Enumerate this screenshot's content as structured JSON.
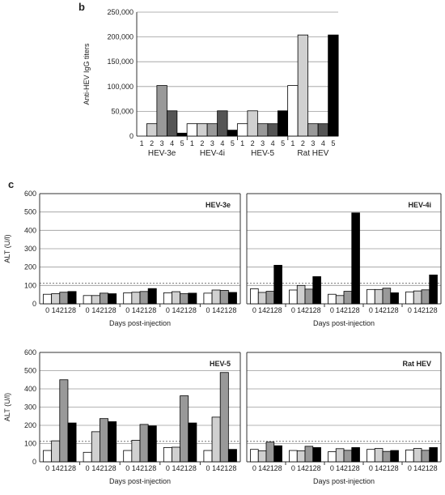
{
  "panel_b_label": "b",
  "panel_c_label": "c",
  "colors": [
    "#ffffff",
    "#d0d0d0",
    "#999999",
    "#555555",
    "#000000"
  ],
  "threshold_color": "#777777",
  "chart_data": [
    {
      "id": "titers",
      "type": "bar",
      "ylabel": "Anti-HEV IgG titers",
      "ylim": [
        0,
        250000
      ],
      "yticks": [
        "0",
        "50,000",
        "100,000",
        "150,000",
        "200,000",
        "250,000"
      ],
      "ytick_values": [
        0,
        50000,
        100000,
        150000,
        200000,
        250000
      ],
      "grid": true,
      "groups": [
        "HEV-3e",
        "HEV-4i",
        "HEV-5",
        "Rat HEV"
      ],
      "categories": [
        "1",
        "2",
        "3",
        "4",
        "5"
      ],
      "values": [
        [
          0,
          25000,
          102000,
          51000,
          6000
        ],
        [
          25000,
          25000,
          25000,
          51000,
          12000
        ],
        [
          25000,
          51000,
          25000,
          25000,
          51000
        ],
        [
          102000,
          204000,
          25000,
          25000,
          204000
        ]
      ]
    },
    {
      "id": "alt-hev3e",
      "type": "bar",
      "title": "HEV-3e",
      "ylabel": "ALT (U/l)",
      "xlabel": "Days post-injection",
      "ylim": [
        0,
        600
      ],
      "yticks": [
        "0",
        "100",
        "200",
        "300",
        "400",
        "500",
        "600"
      ],
      "ytick_values": [
        0,
        100,
        200,
        300,
        400,
        500,
        600
      ],
      "threshold": 112,
      "categories": [
        "0",
        "14",
        "21",
        "28"
      ],
      "values": [
        [
          52,
          55,
          63,
          67
        ],
        [
          45,
          45,
          58,
          55
        ],
        [
          60,
          63,
          67,
          83
        ],
        [
          60,
          66,
          55,
          58
        ],
        [
          58,
          75,
          73,
          62
        ]
      ]
    },
    {
      "id": "alt-hev4i",
      "type": "bar",
      "title": "HEV-4i",
      "xlabel": "Days post-injection",
      "ylim": [
        0,
        600
      ],
      "threshold": 112,
      "categories": [
        "0",
        "14",
        "21",
        "28"
      ],
      "values": [
        [
          82,
          62,
          68,
          210
        ],
        [
          75,
          100,
          80,
          148
        ],
        [
          52,
          45,
          68,
          495
        ],
        [
          78,
          78,
          85,
          60
        ],
        [
          65,
          70,
          76,
          157
        ]
      ]
    },
    {
      "id": "alt-hev5",
      "type": "bar",
      "title": "HEV-5",
      "ylabel": "ALT (U/l)",
      "xlabel": "Days post-injection",
      "ylim": [
        0,
        600
      ],
      "yticks": [
        "0",
        "100",
        "200",
        "300",
        "400",
        "500",
        "600"
      ],
      "ytick_values": [
        0,
        100,
        200,
        300,
        400,
        500,
        600
      ],
      "threshold": 112,
      "categories": [
        "0",
        "14",
        "21",
        "28"
      ],
      "values": [
        [
          62,
          115,
          450,
          213
        ],
        [
          52,
          165,
          237,
          220
        ],
        [
          62,
          118,
          205,
          197
        ],
        [
          78,
          80,
          362,
          213
        ],
        [
          62,
          245,
          490,
          68
        ]
      ]
    },
    {
      "id": "alt-rathev",
      "type": "bar",
      "title": "Rat HEV",
      "xlabel": "Days post-injection",
      "ylim": [
        0,
        600
      ],
      "threshold": 112,
      "categories": [
        "0",
        "14",
        "21",
        "28"
      ],
      "values": [
        [
          68,
          60,
          108,
          88
        ],
        [
          62,
          60,
          85,
          78
        ],
        [
          55,
          72,
          63,
          78
        ],
        [
          68,
          73,
          57,
          62
        ],
        [
          65,
          73,
          63,
          78
        ]
      ]
    }
  ]
}
